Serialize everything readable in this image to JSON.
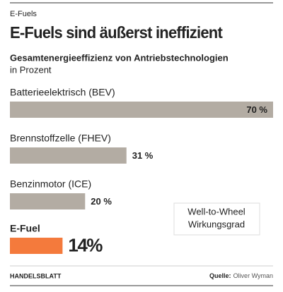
{
  "chart_data": {
    "type": "hbar",
    "kicker": "E-Fuels",
    "title": "E-Fuels sind äußerst ineffizient",
    "subtitle": "Gesamtenergieeffizienz von Antriebstechnologien",
    "unit": "in Prozent",
    "categories": [
      "Batterieelektrisch (BEV)",
      "Brennstoffzelle (FHEV)",
      "Benzinmotor (ICE)",
      "E-Fuel"
    ],
    "values": [
      70,
      31,
      20,
      14
    ],
    "value_labels": [
      "70 %",
      "31 %",
      "20 %",
      "14%"
    ],
    "colors": [
      "#b3aca3",
      "#b3aca3",
      "#b3aca3",
      "#f47a3c"
    ],
    "annotation": [
      "Well-to-Wheel",
      "Wirkungsgrad"
    ],
    "publisher": "HANDELSBLATT",
    "source_label": "Quelle:",
    "source": "Oliver Wyman"
  }
}
